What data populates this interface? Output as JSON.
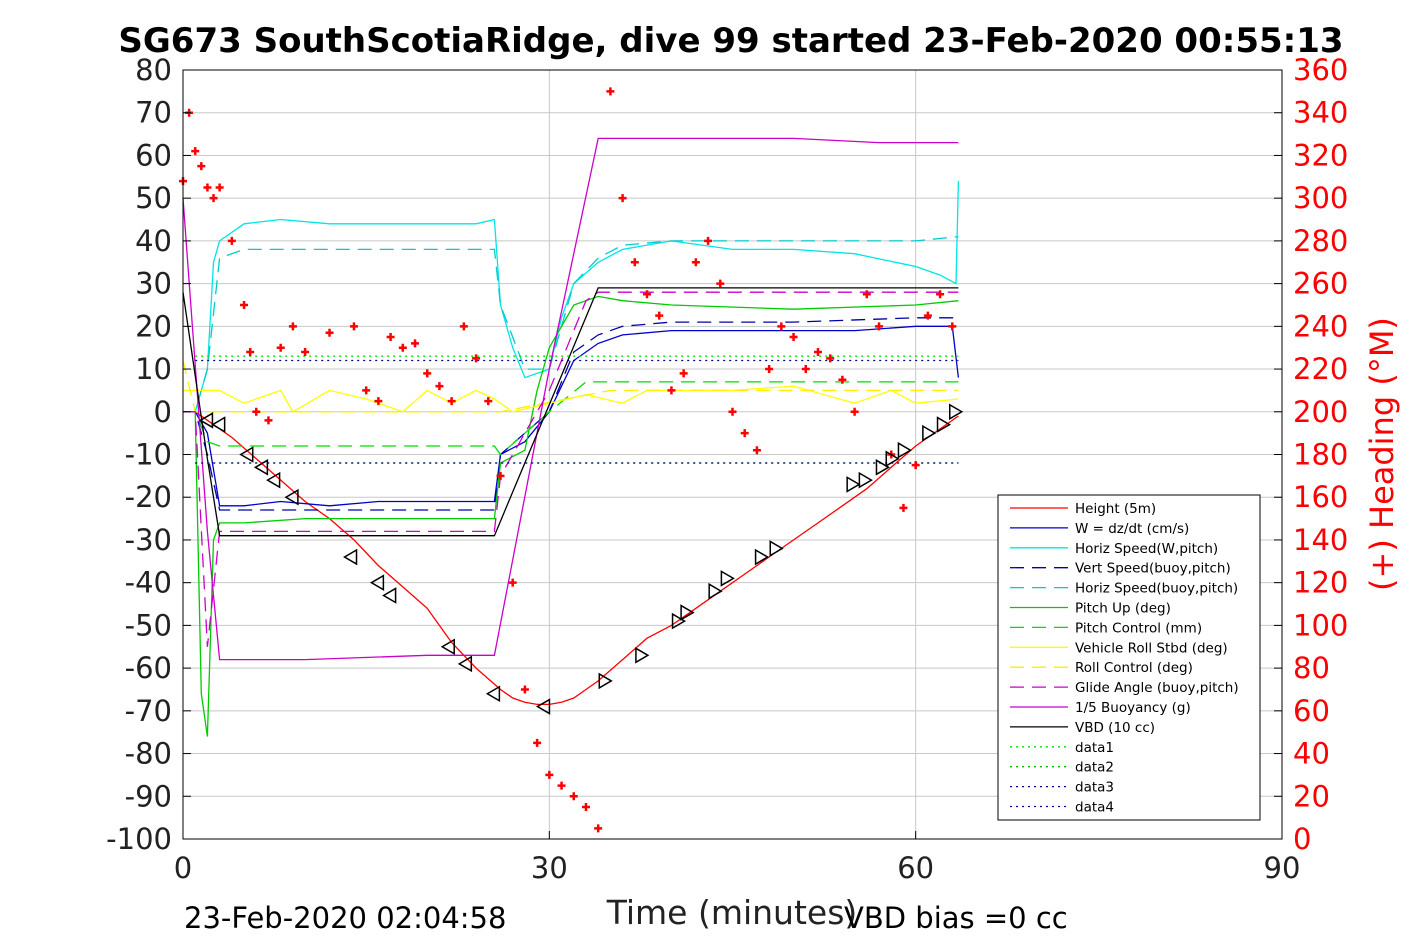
{
  "chart_data": {
    "type": "line",
    "title": "SG673 SouthScotiaRidge, dive 99 started 23-Feb-2020 00:55:13",
    "xlabel": "Time (minutes)",
    "ylabel_right": "(+) Heading (°M)",
    "xlim": [
      0,
      90
    ],
    "ylim": [
      -100,
      80
    ],
    "ylim_right": [
      0,
      360
    ],
    "x_ticks": [
      0,
      30,
      60,
      90
    ],
    "y_ticks": [
      80,
      70,
      60,
      50,
      40,
      30,
      20,
      10,
      0,
      -10,
      -20,
      -30,
      -40,
      -50,
      -60,
      -70,
      -80,
      -90,
      -100
    ],
    "y_ticks_right": [
      360,
      340,
      320,
      300,
      280,
      260,
      240,
      220,
      200,
      180,
      160,
      140,
      120,
      100,
      80,
      60,
      40,
      20,
      0
    ],
    "grid": true,
    "legend_position": "bottom-right",
    "footer_left": "23-Feb-2020 02:04:58",
    "footer_right": "VBD bias =0 cc",
    "colors": {
      "heading": "#ff0000",
      "right_axis": "#ff0000",
      "grid": "#c8c8c8"
    },
    "series": [
      {
        "name": "Height (5m)",
        "color": "#ff0000",
        "style": "solid",
        "x": [
          0,
          1,
          2,
          4,
          6,
          8,
          10,
          12,
          14,
          16,
          18,
          20,
          22,
          24,
          26,
          27,
          28,
          29,
          30,
          31,
          32,
          33,
          34,
          36,
          38,
          40,
          42,
          44,
          46,
          48,
          50,
          52,
          54,
          56,
          58,
          60,
          62,
          63.5
        ],
        "y": [
          0,
          0,
          -2,
          -6,
          -11,
          -16,
          -21,
          -25,
          -30,
          -36,
          -41,
          -46,
          -54,
          -60,
          -65,
          -67,
          -68,
          -68.5,
          -68.5,
          -68,
          -67,
          -65,
          -63,
          -58,
          -53,
          -50,
          -46,
          -42,
          -38,
          -34,
          -30,
          -26,
          -22,
          -18,
          -13,
          -8,
          -4,
          -1
        ]
      },
      {
        "name": "W = dz/dt (cm/s)",
        "color": "#0000cc",
        "style": "solid",
        "x": [
          0,
          1,
          2,
          3,
          5,
          8,
          12,
          16,
          20,
          24,
          25.5,
          26,
          28,
          30,
          32,
          34,
          36,
          40,
          45,
          50,
          55,
          60,
          63,
          63.5
        ],
        "y": [
          0,
          0,
          -5,
          -22,
          -22,
          -21,
          -22,
          -21,
          -21,
          -21,
          -21,
          -10,
          -7,
          0,
          12,
          16,
          18,
          19,
          19,
          19,
          19,
          20,
          20,
          8
        ]
      },
      {
        "name": "Horiz Speed(W,pitch)",
        "color": "#00e5e5",
        "style": "solid",
        "x": [
          0,
          1,
          2,
          2.5,
          3,
          5,
          8,
          12,
          16,
          20,
          24,
          25.5,
          26,
          27,
          28,
          30,
          31,
          32,
          34,
          36,
          40,
          45,
          50,
          55,
          60,
          62,
          63.3,
          63.5
        ],
        "y": [
          0,
          0,
          10,
          35,
          40,
          44,
          45,
          44,
          44,
          44,
          44,
          45,
          25,
          15,
          8,
          10,
          22,
          30,
          35,
          38,
          40,
          38,
          38,
          37,
          34,
          32,
          30,
          54
        ]
      },
      {
        "name": "Vert Speed(buoy,pitch)",
        "color": "#0000aa",
        "style": "dashed",
        "x": [
          0,
          1,
          2,
          3,
          25.5,
          26,
          28,
          30,
          32,
          34,
          36,
          40,
          50,
          60,
          63.5
        ],
        "y": [
          0,
          0,
          -10,
          -23,
          -23,
          -10,
          -5,
          0,
          14,
          18,
          20,
          21,
          21,
          22,
          22
        ]
      },
      {
        "name": "Horiz Speed(buoy,pitch)",
        "color": "#00cccc",
        "style": "dashed",
        "x": [
          0,
          1,
          2,
          3,
          5,
          25.5,
          26,
          28,
          30,
          32,
          34,
          36,
          40,
          50,
          60,
          63.5
        ],
        "y": [
          0,
          0,
          10,
          36,
          38,
          38,
          25,
          10,
          10,
          30,
          36,
          39,
          40,
          40,
          40,
          41
        ]
      },
      {
        "name": "Pitch Up (deg)",
        "color": "#00cc00",
        "style": "solid",
        "x": [
          0,
          1,
          1.5,
          2,
          2.5,
          3,
          5,
          10,
          15,
          20,
          25.5,
          26,
          28,
          29,
          30,
          32,
          34,
          36,
          40,
          50,
          60,
          63.5
        ],
        "y": [
          0,
          0,
          -66,
          -76,
          -30,
          -26,
          -26,
          -25,
          -25,
          -25,
          -25,
          -12,
          -9,
          5,
          15,
          25,
          27,
          26,
          25,
          24,
          25,
          26
        ]
      },
      {
        "name": "Pitch Control (mm)",
        "color": "#00dd00",
        "style": "dashed",
        "x": [
          0,
          1,
          2,
          3,
          25.5,
          26,
          30,
          33,
          34,
          63.5
        ],
        "y": [
          0,
          0,
          -7,
          -8,
          -8,
          -10,
          0,
          7,
          7,
          7
        ]
      },
      {
        "name": "Vehicle Roll Stbd (deg)",
        "color": "#ffff00",
        "style": "solid",
        "x": [
          0,
          3,
          5,
          8,
          9,
          12,
          15,
          18,
          20,
          22,
          24,
          25.5,
          27,
          30,
          33,
          36,
          38,
          40,
          45,
          50,
          55,
          58,
          60,
          63.5
        ],
        "y": [
          5,
          5,
          2,
          5,
          0,
          5,
          3,
          0,
          5,
          2,
          5,
          3,
          0,
          2,
          4,
          2,
          5,
          5,
          5,
          6,
          2,
          5,
          2,
          3
        ]
      },
      {
        "name": "Roll Control (deg)",
        "color": "#ffee00",
        "style": "dashed",
        "x": [
          0,
          1,
          25.5,
          26,
          35,
          36,
          63.5
        ],
        "y": [
          12,
          0,
          0,
          0,
          5,
          5,
          5
        ]
      },
      {
        "name": "Glide Angle (buoy,pitch)",
        "color": "#cc00cc",
        "style": "dashed",
        "x": [
          0,
          1,
          2,
          3,
          25.5,
          26,
          28,
          30,
          33,
          34,
          63.5
        ],
        "y": [
          0,
          0,
          -55,
          -28,
          -28,
          -15,
          -5,
          5,
          26,
          28,
          28
        ]
      },
      {
        "name": "1/5 Buoyancy (g)",
        "color": "#cc00cc",
        "style": "solid",
        "x": [
          0,
          2,
          3,
          10,
          20,
          25.5,
          30,
          34,
          35,
          50,
          57,
          63.5
        ],
        "y": [
          50,
          -28,
          -58,
          -58,
          -57,
          -57,
          10,
          64,
          64,
          64,
          63,
          63
        ]
      },
      {
        "name": "VBD (10 cc)",
        "color": "#000000",
        "style": "solid",
        "x": [
          0,
          2,
          2.5,
          3,
          25.5,
          34,
          35,
          63.5
        ],
        "y": [
          28,
          -11,
          -20,
          -29,
          -29,
          29,
          29,
          29
        ]
      },
      {
        "name": "data1",
        "color": "#00dd00",
        "style": "dotted",
        "x": [
          1,
          63.5
        ],
        "y": [
          13,
          13
        ]
      },
      {
        "name": "data2",
        "color": "#00bb00",
        "style": "dotted",
        "x": [
          1,
          63.5
        ],
        "y": [
          -12,
          -12
        ]
      },
      {
        "name": "data3",
        "color": "#000088",
        "style": "dotted",
        "x": [
          1,
          63.5
        ],
        "y": [
          12,
          12
        ]
      },
      {
        "name": "data4",
        "color": "#000088",
        "style": "dotted",
        "x": [
          1,
          63.5
        ],
        "y": [
          -12,
          -12
        ]
      }
    ],
    "heading": {
      "x": [
        0,
        0.5,
        1,
        1.5,
        2,
        2.5,
        3,
        4,
        5,
        5.5,
        6,
        7,
        8,
        9,
        10,
        12,
        14,
        15,
        16,
        17,
        18,
        19,
        20,
        21,
        22,
        23,
        24,
        25,
        26,
        27,
        28,
        29,
        30,
        31,
        32,
        33,
        34,
        35,
        36,
        37,
        38,
        39,
        40,
        41,
        42,
        43,
        44,
        45,
        46,
        47,
        48,
        49,
        50,
        51,
        52,
        53,
        54,
        55,
        56,
        57,
        58,
        59,
        60,
        61,
        62,
        63
      ],
      "y": [
        308,
        340,
        322,
        315,
        305,
        300,
        305,
        280,
        250,
        228,
        200,
        196,
        230,
        240,
        228,
        237,
        240,
        210,
        205,
        235,
        230,
        232,
        218,
        212,
        205,
        240,
        225,
        205,
        170,
        120,
        70,
        45,
        30,
        25,
        20,
        15,
        5,
        350,
        300,
        270,
        255,
        245,
        210,
        218,
        270,
        280,
        260,
        200,
        190,
        182,
        220,
        240,
        235,
        220,
        228,
        225,
        215,
        200,
        255,
        240,
        180,
        155,
        175,
        245,
        255,
        240
      ]
    },
    "triangles": [
      {
        "x": 2,
        "y": -2
      },
      {
        "x": 3,
        "y": -3
      },
      {
        "x": 5.3,
        "y": -10
      },
      {
        "x": 6.5,
        "y": -13
      },
      {
        "x": 7.5,
        "y": -16
      },
      {
        "x": 9,
        "y": -20
      },
      {
        "x": 13.8,
        "y": -34
      },
      {
        "x": 16,
        "y": -40
      },
      {
        "x": 17,
        "y": -43
      },
      {
        "x": 21.8,
        "y": -55
      },
      {
        "x": 23.2,
        "y": -59
      },
      {
        "x": 25.5,
        "y": -66
      },
      {
        "x": 29.6,
        "y": -69
      },
      {
        "x": 34.5,
        "y": -63
      },
      {
        "x": 37.5,
        "y": -57
      },
      {
        "x": 40.5,
        "y": -49
      },
      {
        "x": 41.2,
        "y": -47
      },
      {
        "x": 43.5,
        "y": -42
      },
      {
        "x": 44.5,
        "y": -39
      },
      {
        "x": 47.3,
        "y": -34
      },
      {
        "x": 48.5,
        "y": -32
      },
      {
        "x": 54.8,
        "y": -17
      },
      {
        "x": 55.8,
        "y": -16
      },
      {
        "x": 57.2,
        "y": -13
      },
      {
        "x": 58,
        "y": -11
      },
      {
        "x": 59,
        "y": -9
      },
      {
        "x": 61,
        "y": -5
      },
      {
        "x": 62.2,
        "y": -3
      },
      {
        "x": 63.2,
        "y": 0
      }
    ]
  }
}
